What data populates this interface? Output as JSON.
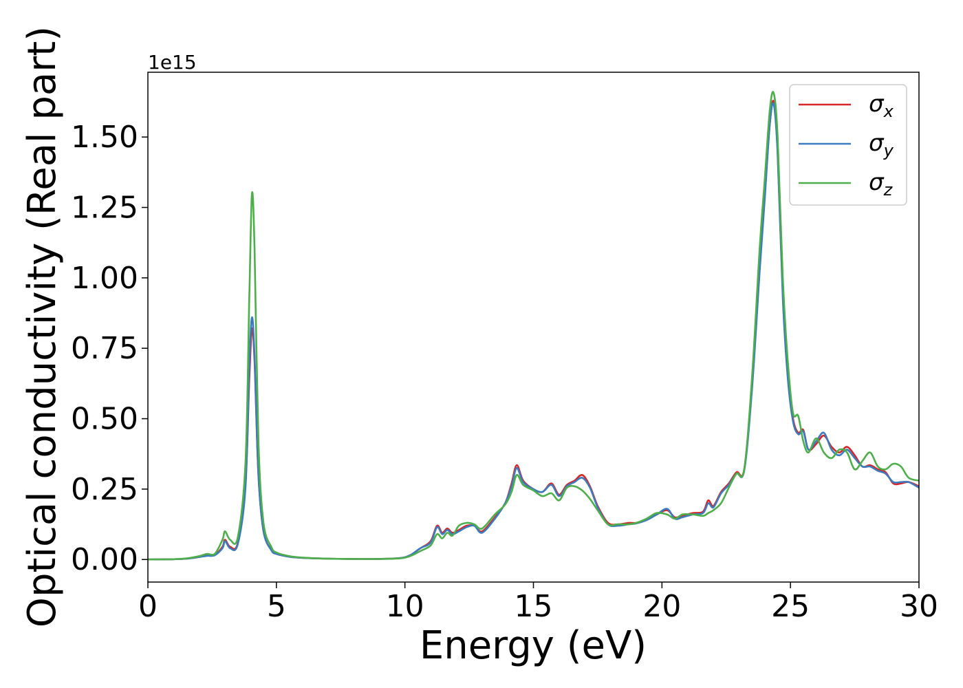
{
  "chart_data": {
    "type": "line",
    "xlabel": "Energy (eV)",
    "ylabel": "Optical conductivity (Real part)",
    "y_offset_label": "1e15",
    "y_scale_factor": 1000000000000000.0,
    "xlim": [
      0,
      30
    ],
    "ylim": [
      -0.08,
      1.73
    ],
    "x_ticks": [
      0,
      5,
      10,
      15,
      20,
      25,
      30
    ],
    "x_tick_labels": [
      "0",
      "5",
      "10",
      "15",
      "20",
      "25",
      "30"
    ],
    "y_ticks": [
      0.0,
      0.25,
      0.5,
      0.75,
      1.0,
      1.25,
      1.5
    ],
    "y_tick_labels": [
      "0.00",
      "0.25",
      "0.50",
      "0.75",
      "1.00",
      "1.25",
      "1.50"
    ],
    "grid": false,
    "legend_position": "top-right",
    "series": [
      {
        "name": "σ_x",
        "label_main": "σ",
        "label_sub": "x",
        "color": "#d62728",
        "x": [
          0,
          1,
          1.5,
          2.0,
          2.3,
          2.6,
          2.9,
          3.0,
          3.2,
          3.5,
          3.8,
          3.95,
          4.05,
          4.15,
          4.3,
          4.5,
          4.8,
          5.0,
          5.5,
          6,
          7,
          8,
          9,
          9.8,
          10.2,
          10.6,
          11.0,
          11.25,
          11.45,
          11.65,
          11.85,
          12.1,
          12.4,
          12.7,
          13.0,
          13.5,
          13.9,
          14.15,
          14.35,
          14.6,
          15.0,
          15.35,
          15.7,
          16.0,
          16.3,
          16.6,
          16.9,
          17.2,
          17.5,
          17.9,
          18.3,
          18.7,
          19.0,
          19.4,
          19.8,
          20.2,
          20.5,
          20.8,
          21.2,
          21.6,
          21.8,
          22.0,
          22.3,
          22.6,
          22.9,
          23.2,
          23.5,
          23.8,
          24.0,
          24.2,
          24.35,
          24.5,
          24.7,
          24.9,
          25.1,
          25.3,
          25.5,
          25.7,
          26.0,
          26.3,
          26.6,
          26.9,
          27.2,
          27.5,
          27.8,
          28.1,
          28.4,
          28.7,
          29.0,
          29.3,
          29.6,
          30.0
        ],
        "y": [
          0,
          0.001,
          0.003,
          0.009,
          0.014,
          0.016,
          0.045,
          0.07,
          0.045,
          0.06,
          0.28,
          0.65,
          0.82,
          0.7,
          0.3,
          0.1,
          0.035,
          0.02,
          0.01,
          0.006,
          0.003,
          0.002,
          0.002,
          0.005,
          0.015,
          0.04,
          0.065,
          0.12,
          0.095,
          0.11,
          0.095,
          0.105,
          0.12,
          0.12,
          0.1,
          0.15,
          0.2,
          0.27,
          0.335,
          0.28,
          0.25,
          0.24,
          0.27,
          0.23,
          0.265,
          0.28,
          0.3,
          0.26,
          0.19,
          0.13,
          0.125,
          0.13,
          0.13,
          0.14,
          0.16,
          0.175,
          0.15,
          0.155,
          0.165,
          0.17,
          0.21,
          0.19,
          0.24,
          0.27,
          0.31,
          0.32,
          0.62,
          1.05,
          1.3,
          1.55,
          1.625,
          1.45,
          0.95,
          0.65,
          0.5,
          0.45,
          0.46,
          0.39,
          0.41,
          0.44,
          0.4,
          0.38,
          0.4,
          0.37,
          0.33,
          0.335,
          0.32,
          0.31,
          0.27,
          0.27,
          0.275,
          0.26
        ]
      },
      {
        "name": "σ_y",
        "label_main": "σ",
        "label_sub": "y",
        "color": "#3b7bbf",
        "x": [
          0,
          1,
          1.5,
          2.0,
          2.3,
          2.6,
          2.9,
          3.0,
          3.2,
          3.5,
          3.8,
          3.95,
          4.05,
          4.15,
          4.3,
          4.5,
          4.8,
          5.0,
          5.5,
          6,
          7,
          8,
          9,
          9.8,
          10.2,
          10.6,
          11.0,
          11.25,
          11.45,
          11.65,
          11.85,
          12.1,
          12.4,
          12.7,
          13.0,
          13.5,
          13.9,
          14.15,
          14.35,
          14.6,
          15.0,
          15.35,
          15.7,
          16.0,
          16.3,
          16.6,
          16.9,
          17.2,
          17.5,
          17.9,
          18.3,
          18.7,
          19.0,
          19.4,
          19.8,
          20.2,
          20.5,
          20.8,
          21.2,
          21.6,
          21.8,
          22.0,
          22.3,
          22.6,
          22.9,
          23.2,
          23.5,
          23.8,
          24.0,
          24.2,
          24.35,
          24.5,
          24.7,
          24.9,
          25.1,
          25.3,
          25.5,
          25.7,
          26.0,
          26.3,
          26.6,
          26.9,
          27.2,
          27.5,
          27.8,
          28.1,
          28.4,
          28.7,
          29.0,
          29.3,
          29.6,
          30.0
        ],
        "y": [
          0,
          0.001,
          0.003,
          0.009,
          0.013,
          0.015,
          0.04,
          0.065,
          0.04,
          0.055,
          0.26,
          0.7,
          0.86,
          0.72,
          0.3,
          0.1,
          0.033,
          0.02,
          0.01,
          0.006,
          0.003,
          0.002,
          0.002,
          0.005,
          0.015,
          0.04,
          0.06,
          0.115,
          0.09,
          0.105,
          0.09,
          0.1,
          0.115,
          0.12,
          0.095,
          0.145,
          0.2,
          0.26,
          0.325,
          0.275,
          0.25,
          0.24,
          0.265,
          0.225,
          0.26,
          0.275,
          0.29,
          0.255,
          0.185,
          0.125,
          0.12,
          0.125,
          0.128,
          0.14,
          0.16,
          0.18,
          0.145,
          0.15,
          0.16,
          0.165,
          0.2,
          0.185,
          0.235,
          0.265,
          0.305,
          0.315,
          0.6,
          1.02,
          1.28,
          1.55,
          1.615,
          1.44,
          0.93,
          0.64,
          0.49,
          0.445,
          0.455,
          0.39,
          0.42,
          0.45,
          0.39,
          0.37,
          0.39,
          0.36,
          0.33,
          0.33,
          0.315,
          0.305,
          0.275,
          0.275,
          0.275,
          0.255
        ]
      },
      {
        "name": "σ_z",
        "label_main": "σ",
        "label_sub": "z",
        "color": "#4daf4a",
        "x": [
          0,
          1,
          1.5,
          2.0,
          2.3,
          2.6,
          2.9,
          3.0,
          3.2,
          3.5,
          3.8,
          3.95,
          4.05,
          4.15,
          4.3,
          4.5,
          4.8,
          5.0,
          5.5,
          6,
          7,
          8,
          9,
          9.8,
          10.2,
          10.6,
          11.0,
          11.25,
          11.45,
          11.65,
          11.85,
          12.1,
          12.4,
          12.7,
          13.0,
          13.5,
          13.9,
          14.15,
          14.35,
          14.6,
          15.0,
          15.35,
          15.7,
          16.0,
          16.3,
          16.6,
          16.9,
          17.2,
          17.5,
          17.9,
          18.3,
          18.7,
          19.0,
          19.4,
          19.8,
          20.2,
          20.5,
          20.8,
          21.2,
          21.6,
          21.8,
          22.0,
          22.3,
          22.6,
          22.9,
          23.2,
          23.5,
          23.8,
          24.0,
          24.2,
          24.35,
          24.5,
          24.7,
          24.9,
          25.1,
          25.3,
          25.5,
          25.7,
          26.0,
          26.3,
          26.6,
          26.9,
          27.2,
          27.5,
          27.8,
          28.1,
          28.4,
          28.7,
          29.0,
          29.3,
          29.6,
          30.0
        ],
        "y": [
          0,
          0.001,
          0.004,
          0.012,
          0.02,
          0.02,
          0.07,
          0.1,
          0.07,
          0.08,
          0.35,
          0.95,
          1.3,
          1.1,
          0.42,
          0.13,
          0.045,
          0.025,
          0.012,
          0.007,
          0.003,
          0.002,
          0.002,
          0.004,
          0.012,
          0.03,
          0.05,
          0.09,
          0.075,
          0.095,
          0.085,
          0.12,
          0.13,
          0.125,
          0.11,
          0.16,
          0.195,
          0.24,
          0.3,
          0.265,
          0.245,
          0.225,
          0.235,
          0.21,
          0.255,
          0.26,
          0.245,
          0.215,
          0.175,
          0.125,
          0.125,
          0.125,
          0.13,
          0.145,
          0.165,
          0.16,
          0.145,
          0.16,
          0.16,
          0.155,
          0.165,
          0.175,
          0.2,
          0.255,
          0.305,
          0.32,
          0.64,
          1.1,
          1.35,
          1.6,
          1.655,
          1.5,
          1.0,
          0.7,
          0.52,
          0.51,
          0.42,
          0.38,
          0.43,
          0.38,
          0.36,
          0.39,
          0.38,
          0.32,
          0.35,
          0.38,
          0.33,
          0.32,
          0.34,
          0.33,
          0.29,
          0.28
        ]
      }
    ]
  }
}
